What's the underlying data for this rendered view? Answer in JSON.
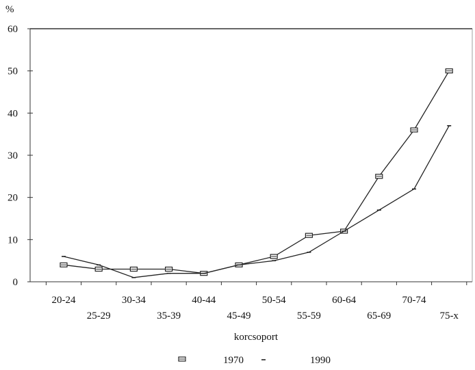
{
  "chart_data": {
    "type": "line",
    "ylabel": "%",
    "xlabel": "korcsoport",
    "ylim": [
      0,
      60
    ],
    "yticks": [
      0,
      10,
      20,
      30,
      40,
      50,
      60
    ],
    "categories": [
      "20-24",
      "25-29",
      "30-34",
      "35-39",
      "40-44",
      "45-49",
      "50-54",
      "55-59",
      "60-64",
      "65-69",
      "70-74",
      "75-x"
    ],
    "series": [
      {
        "name": "1970",
        "marker": "square",
        "values": [
          4,
          3,
          3,
          3,
          2,
          4,
          6,
          11,
          12,
          25,
          36,
          50
        ]
      },
      {
        "name": "1990",
        "marker": "tick",
        "values": [
          6,
          4,
          1,
          2,
          2,
          4,
          5,
          7,
          12,
          17,
          22,
          37
        ]
      }
    ],
    "legend_position": "bottom",
    "grid": false
  },
  "legend": {
    "series_1": "1970",
    "series_2": "1990"
  },
  "colors": {
    "line": "#222222",
    "axis": "#333333"
  }
}
